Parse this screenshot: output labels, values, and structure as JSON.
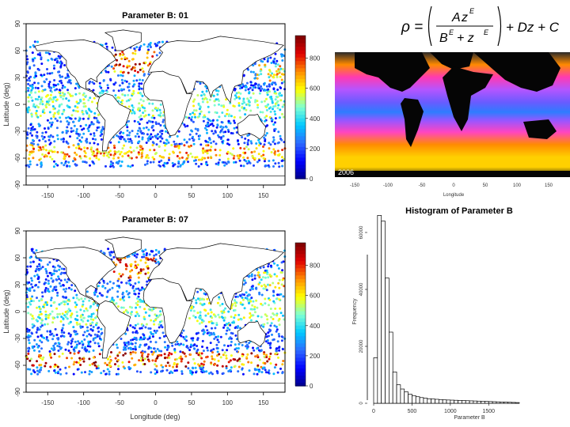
{
  "colors": {
    "ramp": [
      "#00008b",
      "#0000ff",
      "#2f6bff",
      "#00c8ff",
      "#7fffd4",
      "#ffff00",
      "#ff8c00",
      "#e00000",
      "#7a0000"
    ],
    "land": "#ffffff",
    "histogram_bar": "#000000",
    "sat_land": "#050505"
  },
  "maps": [
    {
      "title": "Parameter B: 01",
      "ylabel": "Latitude (deg)",
      "xlabel": "",
      "xticks": [
        "-150",
        "-100",
        "-50",
        "0",
        "50",
        "100",
        "150"
      ],
      "yticks": [
        "-90",
        "-60",
        "-30",
        "0",
        "30",
        "60",
        "90"
      ],
      "colorbar_ticks": [
        "0",
        "200",
        "400",
        "600",
        "800"
      ]
    },
    {
      "title": "Parameter B: 07",
      "ylabel": "Latitude (deg)",
      "xlabel": "Longitude (deg)",
      "xticks": [
        "-150",
        "-100",
        "-50",
        "0",
        "50",
        "100",
        "150"
      ],
      "yticks": [
        "-90",
        "-60",
        "-30",
        "0",
        "30",
        "60",
        "90"
      ],
      "colorbar_ticks": [
        "0",
        "200",
        "400",
        "600",
        "800"
      ]
    }
  ],
  "formula": {
    "lhs": "ρ =",
    "num_a": "A",
    "num_z": "z",
    "num_exp": "E",
    "den_b": "B",
    "den_exp1": "E",
    "den_plus": "+ z",
    "den_exp2": "E",
    "tail": "+ Dz + C"
  },
  "satellite": {
    "year_label": "2006",
    "xticks": [
      "-150",
      "-100",
      "-50",
      "0",
      "50",
      "100",
      "150"
    ],
    "xlabel": "Longitude"
  },
  "chart_data": {
    "type": "bar",
    "title": "Histogram of Parameter B",
    "xlabel": "Parameter B",
    "ylabel": "Frequency",
    "xlim": [
      0,
      1900
    ],
    "ylim": [
      0,
      65000
    ],
    "xticks": [
      "0",
      "500",
      "1000",
      "1500"
    ],
    "yticks": [
      "0",
      "20000",
      "40000",
      "60000"
    ],
    "bin_width": 50,
    "bin_starts": [
      0,
      50,
      100,
      150,
      200,
      250,
      300,
      350,
      400,
      450,
      500,
      550,
      600,
      650,
      700,
      750,
      800,
      850,
      900,
      950,
      1000,
      1050,
      1100,
      1150,
      1200,
      1250,
      1300,
      1350,
      1400,
      1450,
      1500,
      1550,
      1600,
      1650,
      1700,
      1750,
      1800,
      1850
    ],
    "values": [
      16000,
      66000,
      64000,
      44000,
      25000,
      11000,
      6500,
      5000,
      4000,
      3200,
      2700,
      2300,
      2000,
      1800,
      1600,
      1500,
      1400,
      1300,
      1200,
      1150,
      1100,
      1050,
      1000,
      950,
      900,
      850,
      800,
      750,
      700,
      650,
      600,
      550,
      500,
      450,
      400,
      350,
      300,
      250
    ]
  }
}
